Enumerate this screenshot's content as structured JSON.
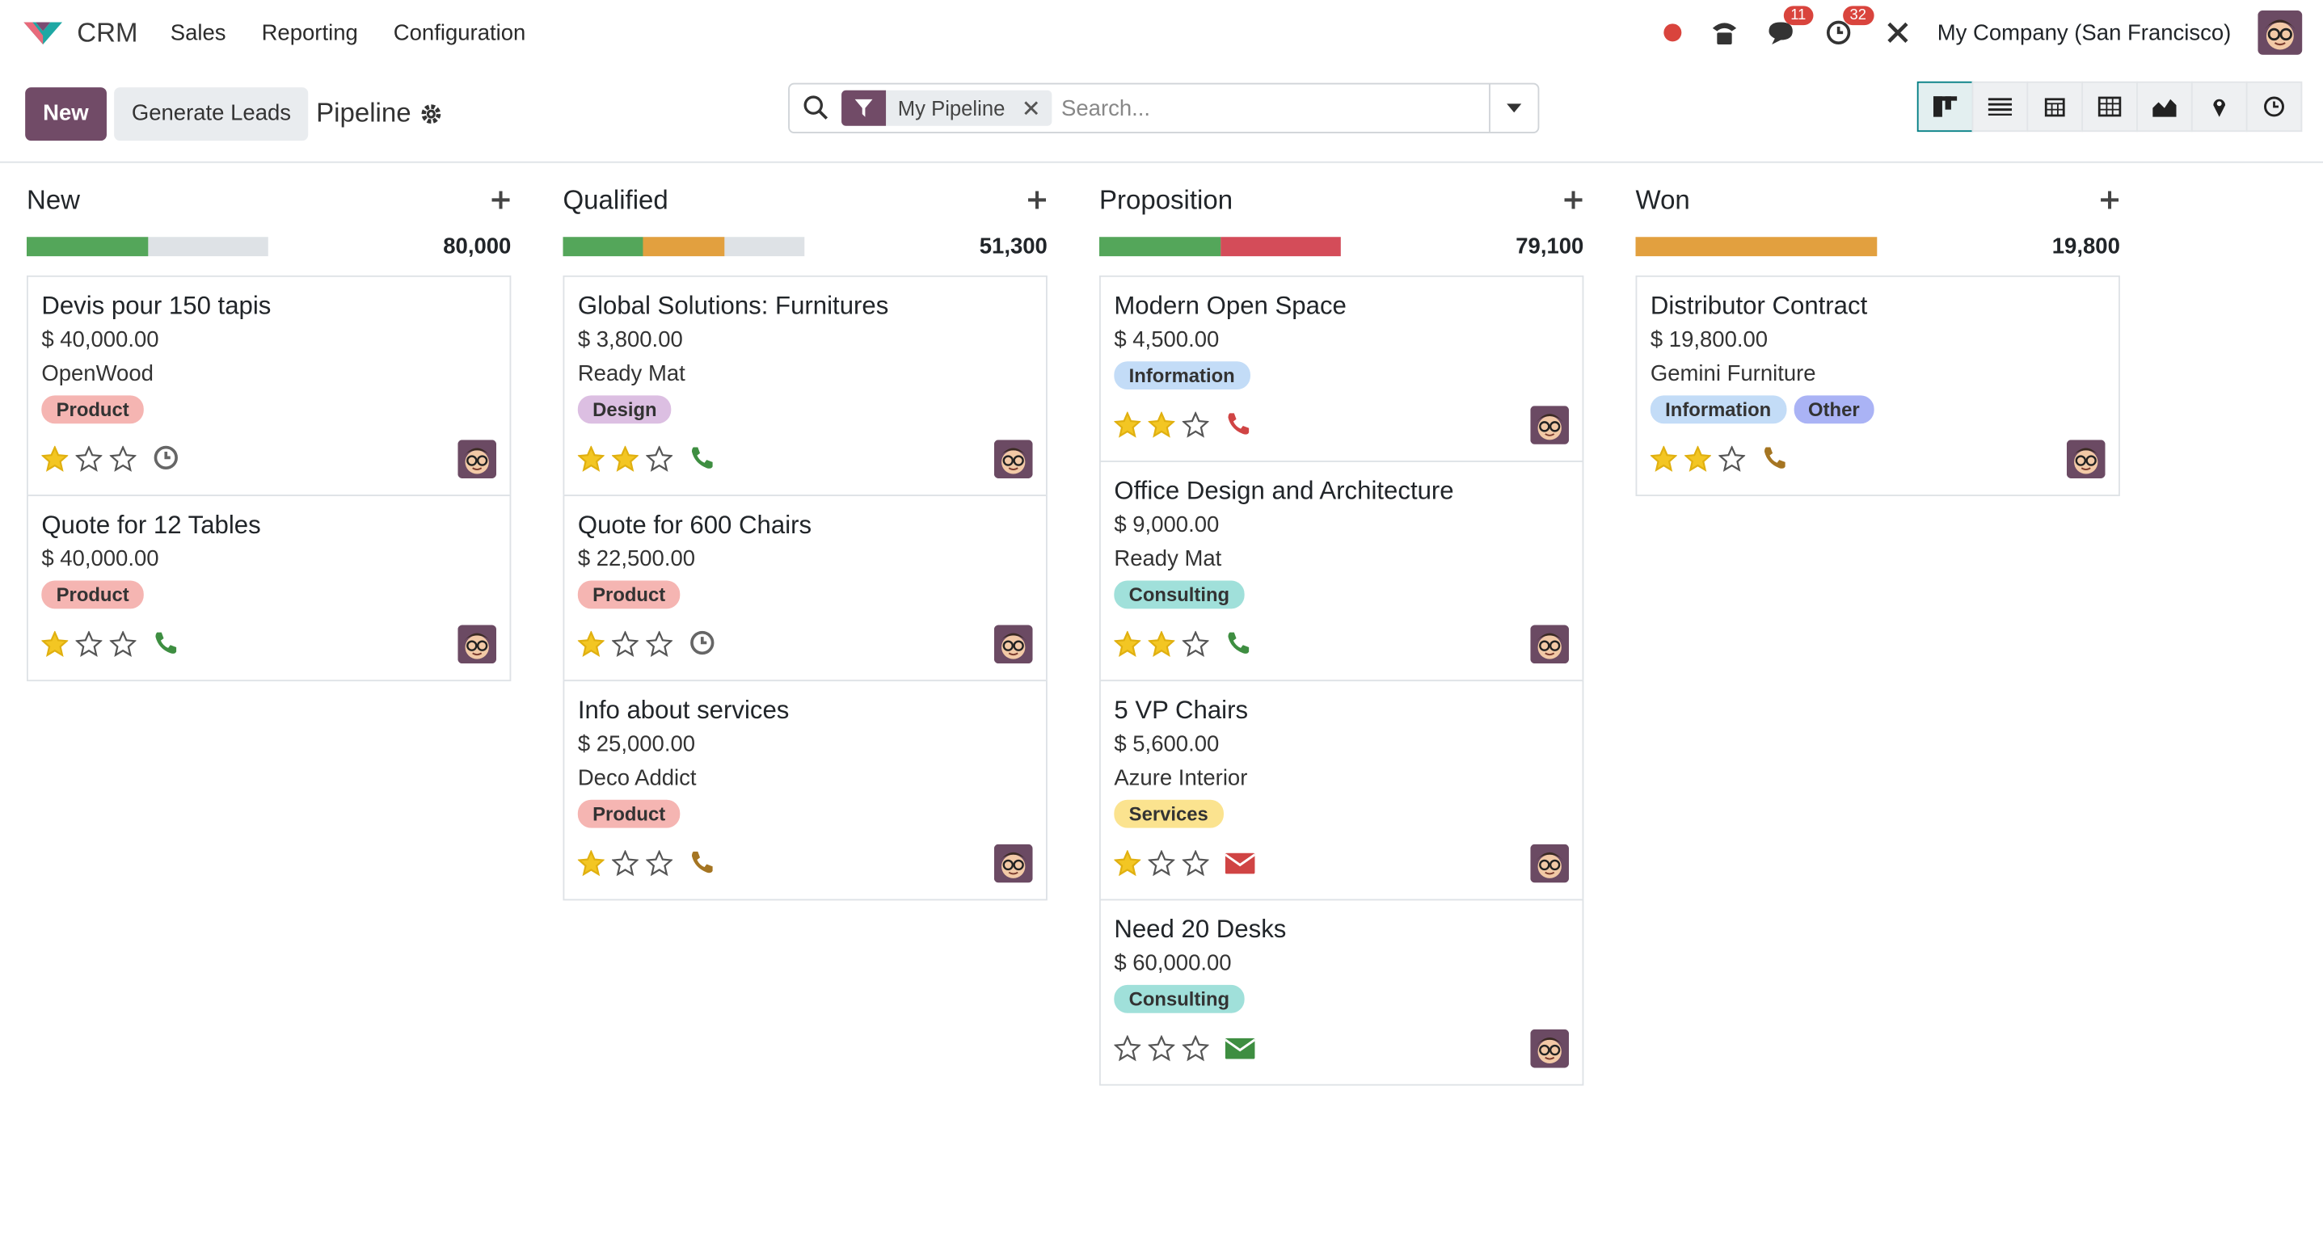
{
  "navbar": {
    "app": "CRM",
    "menus": [
      "Sales",
      "Reporting",
      "Configuration"
    ],
    "messages_count": 11,
    "activities_count": 32,
    "company": "My Company (San Francisco)"
  },
  "control_panel": {
    "new_button": "New",
    "generate_button": "Generate Leads",
    "breadcrumb": "Pipeline",
    "facet": "My Pipeline",
    "search_placeholder": "Search..."
  },
  "columns": [
    {
      "name": "New",
      "total": "80,000",
      "cards": [
        {
          "title": "Devis pour 150 tapis",
          "amount": "$ 40,000.00",
          "customer": "OpenWood",
          "tags": [
            {
              "name": "Product",
              "color": "#f5b5b2"
            }
          ],
          "priority": 1,
          "activity": "clock",
          "activity_color": "#666666"
        },
        {
          "title": "Quote for 12 Tables",
          "amount": "$ 40,000.00",
          "tags": [
            {
              "name": "Product",
              "color": "#f5b5b2"
            }
          ],
          "priority": 1,
          "activity": "phone",
          "activity_color": "#3e8e41"
        }
      ]
    },
    {
      "name": "Qualified",
      "total": "51,300",
      "cards": [
        {
          "title": "Global Solutions: Furnitures",
          "amount": "$ 3,800.00",
          "customer": "Ready Mat",
          "tags": [
            {
              "name": "Design",
              "color": "#dcbfe2"
            }
          ],
          "priority": 2,
          "activity": "phone",
          "activity_color": "#3e8e41"
        },
        {
          "title": "Quote for 600 Chairs",
          "amount": "$ 22,500.00",
          "tags": [
            {
              "name": "Product",
              "color": "#f5b5b2"
            }
          ],
          "priority": 1,
          "activity": "clock",
          "activity_color": "#666666"
        },
        {
          "title": "Info about services",
          "amount": "$ 25,000.00",
          "customer": "Deco Addict",
          "tags": [
            {
              "name": "Product",
              "color": "#f5b5b2"
            }
          ],
          "priority": 1,
          "activity": "phone",
          "activity_color": "#a57522"
        }
      ]
    },
    {
      "name": "Proposition",
      "total": "79,100",
      "cards": [
        {
          "title": "Modern Open Space",
          "amount": "$ 4,500.00",
          "tags": [
            {
              "name": "Information",
              "color": "#c3dcf7"
            }
          ],
          "priority": 2,
          "activity": "phone",
          "activity_color": "#d04444"
        },
        {
          "title": "Office Design and Architecture",
          "amount": "$ 9,000.00",
          "customer": "Ready Mat",
          "tags": [
            {
              "name": "Consulting",
              "color": "#a0e0da"
            }
          ],
          "priority": 2,
          "activity": "phone",
          "activity_color": "#3e8e41"
        },
        {
          "title": "5 VP Chairs",
          "amount": "$ 5,600.00",
          "customer": "Azure Interior",
          "tags": [
            {
              "name": "Services",
              "color": "#fbe38f"
            }
          ],
          "priority": 1,
          "activity": "email",
          "activity_color": "#d04444"
        },
        {
          "title": "Need 20 Desks",
          "amount": "$ 60,000.00",
          "tags": [
            {
              "name": "Consulting",
              "color": "#a0e0da"
            }
          ],
          "priority": 0,
          "activity": "email",
          "activity_color": "#3e8e41"
        }
      ]
    },
    {
      "name": "Won",
      "total": "19,800",
      "cards": [
        {
          "title": "Distributor Contract",
          "amount": "$ 19,800.00",
          "customer": "Gemini Furniture",
          "tags": [
            {
              "name": "Information",
              "color": "#c3dcf7"
            },
            {
              "name": "Other",
              "color": "#aab3f5"
            }
          ],
          "priority": 2,
          "activity": "phone",
          "activity_color": "#a57522"
        }
      ]
    }
  ]
}
